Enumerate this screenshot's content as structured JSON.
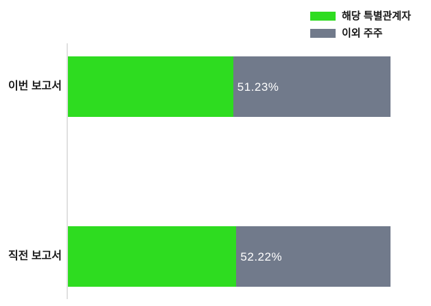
{
  "legend": {
    "items": [
      {
        "label": "해당 특별관계자",
        "color": "#2edc20"
      },
      {
        "label": "이외 주주",
        "color": "#717a8b"
      }
    ]
  },
  "chart_data": {
    "type": "bar",
    "orientation": "horizontal",
    "stacked": true,
    "unit": "%",
    "title": "",
    "xlabel": "",
    "ylabel": "",
    "xlim": [
      0,
      100
    ],
    "grid": false,
    "legend_position": "top-right",
    "categories": [
      "이번 보고서",
      "직전 보고서"
    ],
    "series": [
      {
        "name": "해당 특별관계자",
        "color": "#2edc20",
        "values": [
          51.23,
          52.22
        ]
      },
      {
        "name": "이외 주주",
        "color": "#717a8b",
        "values": [
          48.77,
          47.78
        ]
      }
    ],
    "value_labels": [
      "51.23%",
      "52.22%"
    ]
  },
  "bars": [
    {
      "category": "이번 보고서",
      "value_label": "51.23%",
      "green_pct": 51.23
    },
    {
      "category": "직전 보고서",
      "value_label": "52.22%",
      "green_pct": 52.22
    }
  ],
  "colors": {
    "green": "#2edc20",
    "gray": "#717a8b",
    "axis_line": "#e0e0e0",
    "category_text": "#191919",
    "value_text": "#ffffff",
    "background": "#ffffff"
  }
}
